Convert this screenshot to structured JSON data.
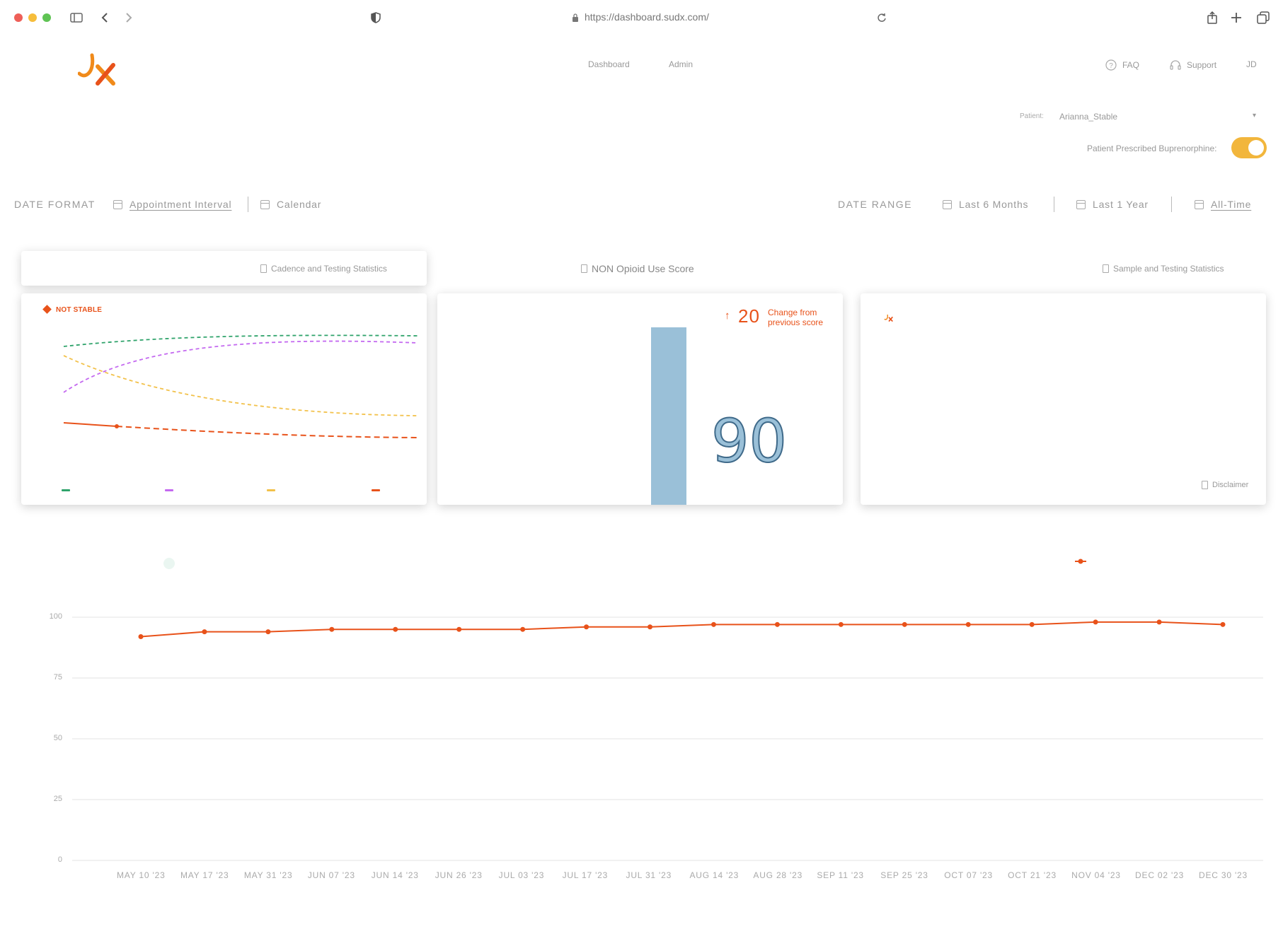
{
  "browser": {
    "url": "https://dashboard.sudx.com/"
  },
  "nav": {
    "links": [
      "Dashboard",
      "Admin"
    ],
    "faq": "FAQ",
    "support": "Support",
    "user_initials": "JD"
  },
  "patient": {
    "label": "Patient:",
    "value": "Arianna_Stable",
    "buprenorphine_label": "Patient Prescribed Buprenorphine:",
    "buprenorphine_on": true
  },
  "date_format": {
    "title": "DATE FORMAT",
    "options": [
      "Appointment Interval",
      "Calendar"
    ],
    "selected": "Appointment Interval"
  },
  "date_range": {
    "title": "DATE RANGE",
    "options": [
      "Last 6 Months",
      "Last 1 Year",
      "All-Time"
    ],
    "selected": "All-Time"
  },
  "cards": {
    "cadence_label": "Cadence and Testing Statistics",
    "nonopioid_label": "NON Opioid Use Score",
    "sample_label": "Sample and Testing Statistics",
    "status": "NOT STABLE",
    "change_value": "20",
    "change_text": "Change from previous score",
    "score": "90",
    "disclaimer": "Disclaimer"
  },
  "colors": {
    "accent": "#e8521a",
    "green": "#2fa36b",
    "purple": "#c469f0",
    "yellow": "#f2c14a",
    "bar": "#9ac0d8",
    "toggle": "#f2b63c"
  },
  "chart_data": {
    "type": "line",
    "ylim": [
      0,
      100
    ],
    "y_ticks": [
      "100",
      "75",
      "50",
      "25",
      "0"
    ],
    "categories": [
      "MAY 10 '23",
      "MAY 17 '23",
      "MAY 31 '23",
      "JUN 07 '23",
      "JUN 14 '23",
      "JUN 26 '23",
      "JUL 03 '23",
      "JUL 17 '23",
      "JUL 31 '23",
      "AUG 14 '23",
      "AUG 28 '23",
      "SEP 11 '23",
      "SEP 25 '23",
      "OCT 07 '23",
      "OCT 21 '23",
      "NOV 04 '23",
      "DEC 02 '23",
      "DEC 30 '23"
    ],
    "values": [
      92,
      94,
      94,
      95,
      95,
      95,
      95,
      96,
      96,
      97,
      97,
      97,
      97,
      97,
      97,
      98,
      98,
      97
    ]
  }
}
